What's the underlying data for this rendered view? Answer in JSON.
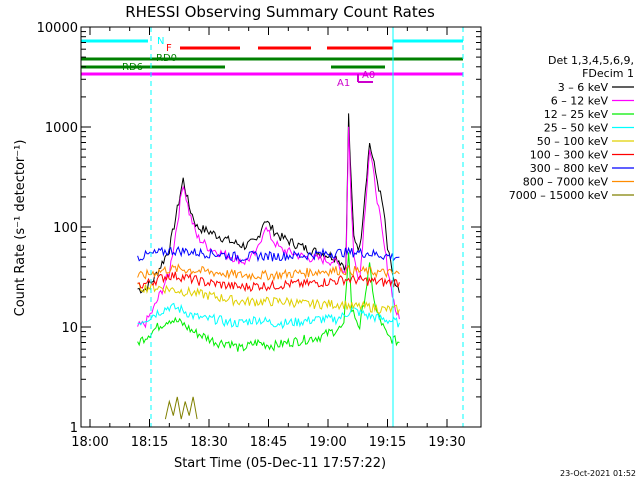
{
  "chart_data": {
    "type": "line",
    "title": "RHESSI Observing Summary Count Rates",
    "xlabel": "Start Time (05-Dec-11 17:57:22)",
    "ylabel": "Count Rate (s⁻¹ detector⁻¹)",
    "y_scale": "log",
    "ylim": [
      1,
      10000
    ],
    "xlim_minutes_after_1800": [
      -2.6,
      36.5
    ],
    "x_ticks": [
      {
        "label": "18:00",
        "minute": 0
      },
      {
        "label": "18:15",
        "minute": 15
      },
      {
        "label": "18:30",
        "minute": 30
      },
      {
        "label": "18:45",
        "minute": 45
      },
      {
        "label": "19:00",
        "minute": 60
      },
      {
        "label": "19:15",
        "minute": 75
      },
      {
        "label": "19:30",
        "minute": 90
      }
    ],
    "y_ticks": [
      {
        "label": "1",
        "value": 1
      },
      {
        "label": "10",
        "value": 10
      },
      {
        "label": "100",
        "value": 100
      },
      {
        "label": "1000",
        "value": 1000
      },
      {
        "label": "10000",
        "value": 10000
      }
    ],
    "legend_header": [
      "Det 1,3,4,5,6,9,",
      "FDecim 1"
    ],
    "legend_position": "right",
    "series": [
      {
        "name": "3 – 6 keV",
        "color": "#000000",
        "points": [
          [
            12,
            24
          ],
          [
            14,
            24
          ],
          [
            16,
            30
          ],
          [
            20,
            60
          ],
          [
            22,
            150
          ],
          [
            23.5,
            300
          ],
          [
            25,
            160
          ],
          [
            27,
            100
          ],
          [
            30,
            90
          ],
          [
            33,
            80
          ],
          [
            36,
            70
          ],
          [
            39,
            65
          ],
          [
            42,
            72
          ],
          [
            44,
            120
          ],
          [
            46,
            95
          ],
          [
            48,
            80
          ],
          [
            51,
            70
          ],
          [
            54,
            62
          ],
          [
            58,
            55
          ],
          [
            62,
            50
          ],
          [
            64.5,
            40
          ],
          [
            65.2,
            1300
          ],
          [
            65.8,
            300
          ],
          [
            66.5,
            80
          ],
          [
            68,
            60
          ],
          [
            70.5,
            700
          ],
          [
            72,
            350
          ],
          [
            74,
            150
          ],
          [
            75,
            60
          ],
          [
            77,
            25
          ],
          [
            78,
            22
          ]
        ]
      },
      {
        "name": "6 – 12 keV",
        "color": "#ff00ff",
        "points": [
          [
            12,
            10
          ],
          [
            14,
            11
          ],
          [
            16,
            15
          ],
          [
            20,
            35
          ],
          [
            22,
            110
          ],
          [
            23.5,
            280
          ],
          [
            25,
            140
          ],
          [
            27,
            80
          ],
          [
            30,
            62
          ],
          [
            33,
            55
          ],
          [
            36,
            50
          ],
          [
            39,
            45
          ],
          [
            42,
            55
          ],
          [
            44,
            100
          ],
          [
            46,
            75
          ],
          [
            48,
            60
          ],
          [
            51,
            55
          ],
          [
            54,
            50
          ],
          [
            58,
            48
          ],
          [
            62,
            45
          ],
          [
            64.5,
            35
          ],
          [
            65.2,
            1000
          ],
          [
            65.8,
            200
          ],
          [
            66.5,
            50
          ],
          [
            68,
            30
          ],
          [
            70.5,
            600
          ],
          [
            72,
            250
          ],
          [
            74,
            70
          ],
          [
            75,
            40
          ],
          [
            77,
            15
          ],
          [
            78,
            12
          ]
        ]
      },
      {
        "name": "12 – 25 keV",
        "color": "#00ee00",
        "points": [
          [
            12,
            7
          ],
          [
            14,
            8
          ],
          [
            17,
            10
          ],
          [
            20,
            12
          ],
          [
            23,
            11
          ],
          [
            26,
            9
          ],
          [
            29,
            8
          ],
          [
            32,
            7
          ],
          [
            35,
            7
          ],
          [
            38,
            6
          ],
          [
            42,
            7
          ],
          [
            46,
            6.5
          ],
          [
            50,
            7
          ],
          [
            54,
            7.5
          ],
          [
            58,
            8
          ],
          [
            61,
            9
          ],
          [
            64,
            10
          ],
          [
            65.2,
            60
          ],
          [
            66,
            15
          ],
          [
            68,
            10
          ],
          [
            70.5,
            40
          ],
          [
            72,
            15
          ],
          [
            75,
            8
          ],
          [
            78,
            7
          ]
        ]
      },
      {
        "name": "25 – 50 keV",
        "color": "#00ffff",
        "points": [
          [
            12,
            11
          ],
          [
            14,
            12
          ],
          [
            17,
            14
          ],
          [
            20,
            16
          ],
          [
            23,
            15
          ],
          [
            26,
            13
          ],
          [
            29,
            12
          ],
          [
            32,
            12
          ],
          [
            35,
            11
          ],
          [
            38,
            11
          ],
          [
            42,
            12
          ],
          [
            46,
            11
          ],
          [
            50,
            11
          ],
          [
            54,
            11.5
          ],
          [
            58,
            12
          ],
          [
            62,
            12
          ],
          [
            64,
            13
          ],
          [
            66,
            15
          ],
          [
            70,
            13
          ],
          [
            74,
            12
          ],
          [
            78,
            11
          ]
        ]
      },
      {
        "name": "50 – 100 keV",
        "color": "#e0d000",
        "points": [
          [
            12,
            25
          ],
          [
            14,
            25
          ],
          [
            17,
            25
          ],
          [
            20,
            24
          ],
          [
            23,
            23
          ],
          [
            26,
            22
          ],
          [
            29,
            21
          ],
          [
            32,
            20
          ],
          [
            35,
            19
          ],
          [
            38,
            18
          ],
          [
            42,
            18
          ],
          [
            46,
            18
          ],
          [
            50,
            18
          ],
          [
            54,
            17
          ],
          [
            58,
            17
          ],
          [
            62,
            17
          ],
          [
            64,
            17
          ],
          [
            66,
            16
          ],
          [
            70,
            16
          ],
          [
            74,
            15
          ],
          [
            78,
            15
          ]
        ]
      },
      {
        "name": "100 – 300 keV",
        "color": "#ff0000",
        "points": [
          [
            12,
            26
          ],
          [
            14,
            27
          ],
          [
            17,
            30
          ],
          [
            20,
            33
          ],
          [
            23,
            32
          ],
          [
            26,
            30
          ],
          [
            29,
            28
          ],
          [
            32,
            27
          ],
          [
            35,
            26
          ],
          [
            38,
            25
          ],
          [
            42,
            26
          ],
          [
            46,
            26
          ],
          [
            50,
            27
          ],
          [
            54,
            27
          ],
          [
            58,
            28
          ],
          [
            62,
            29
          ],
          [
            64,
            30
          ],
          [
            66,
            30
          ],
          [
            70,
            29
          ],
          [
            74,
            28
          ],
          [
            78,
            28
          ]
        ]
      },
      {
        "name": "300 – 800 keV",
        "color": "#0000ff",
        "points": [
          [
            12,
            50
          ],
          [
            14,
            52
          ],
          [
            17,
            55
          ],
          [
            20,
            58
          ],
          [
            23,
            58
          ],
          [
            26,
            56
          ],
          [
            29,
            55
          ],
          [
            32,
            54
          ],
          [
            35,
            52
          ],
          [
            38,
            50
          ],
          [
            42,
            52
          ],
          [
            46,
            51
          ],
          [
            50,
            52
          ],
          [
            54,
            52
          ],
          [
            58,
            54
          ],
          [
            62,
            55
          ],
          [
            64,
            56
          ],
          [
            66,
            56
          ],
          [
            70,
            55
          ],
          [
            74,
            52
          ],
          [
            78,
            50
          ]
        ]
      },
      {
        "name": "800 – 7000 keV",
        "color": "#ff8c00",
        "points": [
          [
            12,
            32
          ],
          [
            14,
            33
          ],
          [
            17,
            36
          ],
          [
            20,
            38
          ],
          [
            23,
            38
          ],
          [
            26,
            37
          ],
          [
            29,
            36
          ],
          [
            32,
            35
          ],
          [
            35,
            34
          ],
          [
            38,
            33
          ],
          [
            42,
            33
          ],
          [
            46,
            33
          ],
          [
            50,
            34
          ],
          [
            54,
            35
          ],
          [
            58,
            36
          ],
          [
            62,
            37
          ],
          [
            64,
            37
          ],
          [
            66,
            37
          ],
          [
            70,
            36
          ],
          [
            74,
            35
          ],
          [
            78,
            34
          ]
        ]
      },
      {
        "name": "7000 – 15000 keV",
        "color": "#808000",
        "points": [
          [
            19,
            1.2
          ],
          [
            20,
            1.8
          ],
          [
            21,
            1.3
          ],
          [
            22,
            2
          ],
          [
            23,
            1.2
          ],
          [
            24,
            1.8
          ],
          [
            25,
            1.3
          ],
          [
            26,
            2
          ],
          [
            27,
            1.2
          ]
        ]
      }
    ],
    "annotations": [
      {
        "label": "N",
        "color": "#00ffff"
      },
      {
        "label": "F",
        "color": "#ff0000"
      },
      {
        "label": "RD0",
        "color": "#008000"
      },
      {
        "label": "RD6",
        "color": "#008000"
      },
      {
        "label": "A1",
        "color": "#cc00cc"
      },
      {
        "label": "A0",
        "color": "#cc00cc"
      }
    ],
    "timestamp": "23-Oct-2021 01:52"
  }
}
